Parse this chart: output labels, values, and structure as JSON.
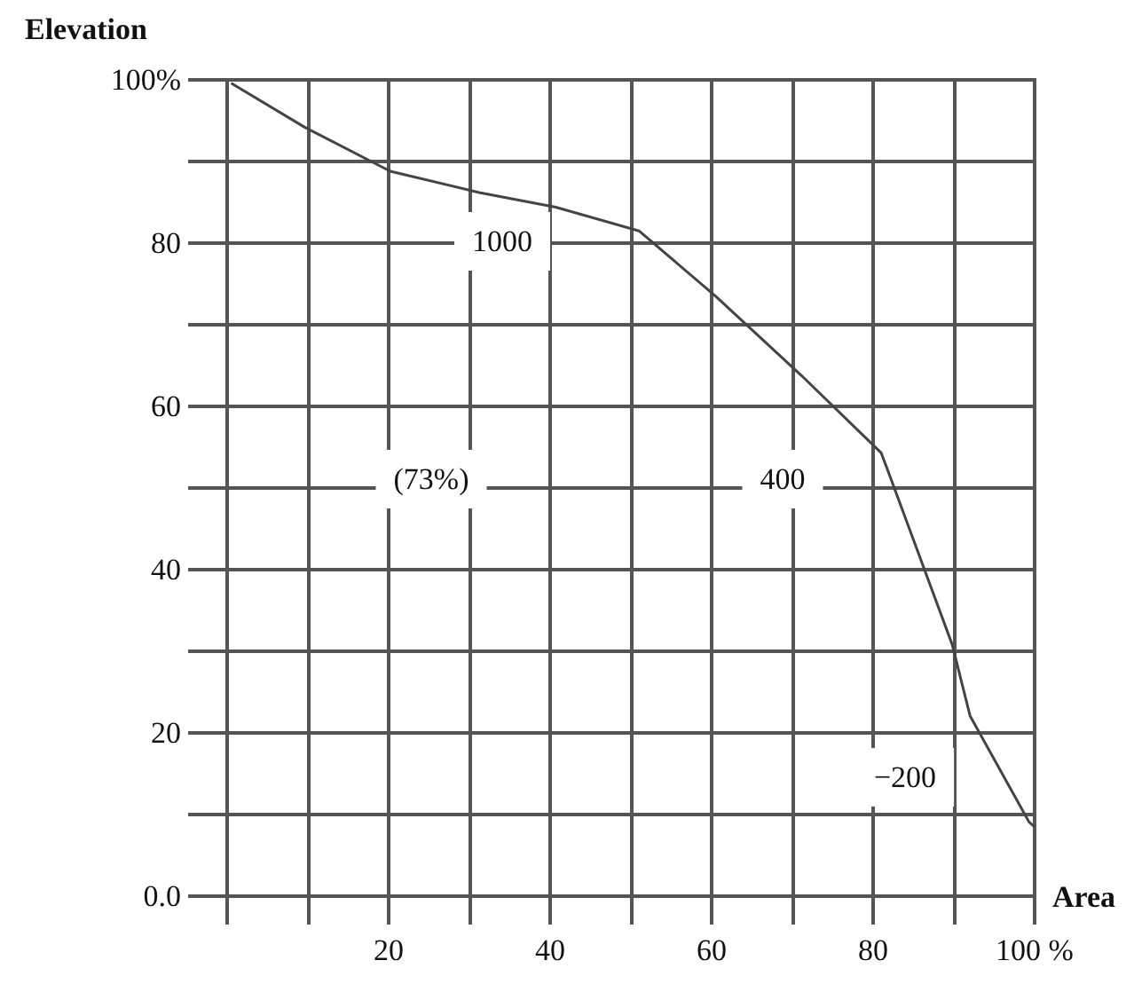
{
  "chart_data": {
    "type": "line",
    "xlabel": "Area",
    "ylabel": "Elevation",
    "x": [
      0.5,
      9.6,
      20.2,
      31.2,
      40.7,
      51,
      60.5,
      71.1,
      81,
      81.8,
      89.8,
      92,
      99.3,
      100
    ],
    "series": [
      {
        "color": "#444444",
        "values": [
          99.6,
          94.2,
          88.8,
          86.2,
          84.4,
          81.5,
          73.5,
          63.8,
          54.3,
          52.2,
          30.8,
          22.1,
          9.1,
          8.5
        ]
      }
    ],
    "xlim": [
      0,
      100
    ],
    "ylim": [
      0,
      100
    ],
    "xticks": [
      {
        "value": 0,
        "label": null
      },
      {
        "value": 10,
        "label": null
      },
      20,
      {
        "value": 30,
        "label": null
      },
      40,
      {
        "value": 50,
        "label": null
      },
      60,
      {
        "value": 70,
        "label": null
      },
      80,
      {
        "value": 90,
        "label": null
      },
      {
        "value": 100,
        "label": "100 %"
      }
    ],
    "yticks": [
      {
        "value": 0,
        "label": "0.0"
      },
      {
        "value": 10,
        "label": null
      },
      20,
      {
        "value": 30,
        "label": null
      },
      40,
      {
        "value": 50,
        "label": null
      },
      60,
      {
        "value": 70,
        "label": null
      },
      80,
      {
        "value": 90,
        "label": null
      },
      {
        "value": 100,
        "label": "100%"
      }
    ],
    "grid": true,
    "annotations": [
      "1000",
      "(73%)",
      "400",
      "−200"
    ]
  }
}
